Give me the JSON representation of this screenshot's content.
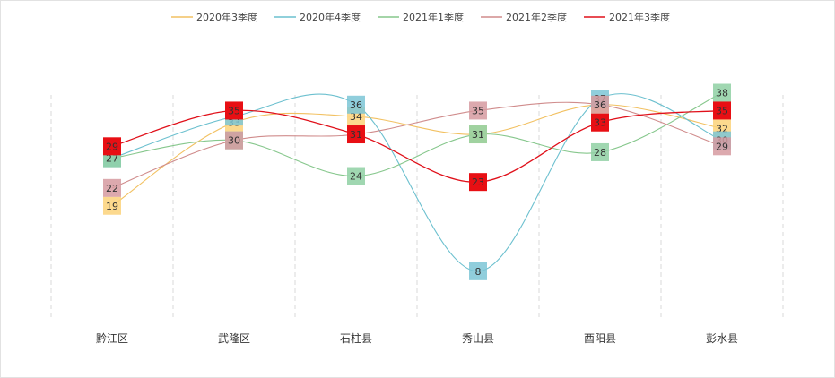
{
  "chart_data": {
    "type": "line",
    "categories": [
      "黔江区",
      "武隆区",
      "石柱县",
      "秀山县",
      "酉阳县",
      "彭水县"
    ],
    "ylim": [
      0,
      45
    ],
    "grid": "vertical-dashed",
    "legend_position": "top",
    "smooth": true,
    "series": [
      {
        "name": "2020年3季度",
        "color": "#f2c162",
        "label_fill": "#fbd27a",
        "values": [
          19,
          33,
          34,
          31,
          36,
          32
        ]
      },
      {
        "name": "2020年4季度",
        "color": "#6cc0cf",
        "label_fill": "#7cc6d6",
        "values": [
          27,
          34,
          36,
          8,
          37,
          30
        ]
      },
      {
        "name": "2021年1季度",
        "color": "#86c78c",
        "label_fill": "#8fd0a3",
        "values": [
          27,
          30,
          24,
          31,
          28,
          38
        ]
      },
      {
        "name": "2021年2季度",
        "color": "#d08c8c",
        "label_fill": "#d69aa0",
        "values": [
          22,
          30,
          31,
          35,
          36,
          29
        ]
      },
      {
        "name": "2021年3季度",
        "color": "#e0101a",
        "label_fill": "#e80f14",
        "values": [
          29,
          35,
          31,
          23,
          33,
          35
        ]
      }
    ]
  }
}
